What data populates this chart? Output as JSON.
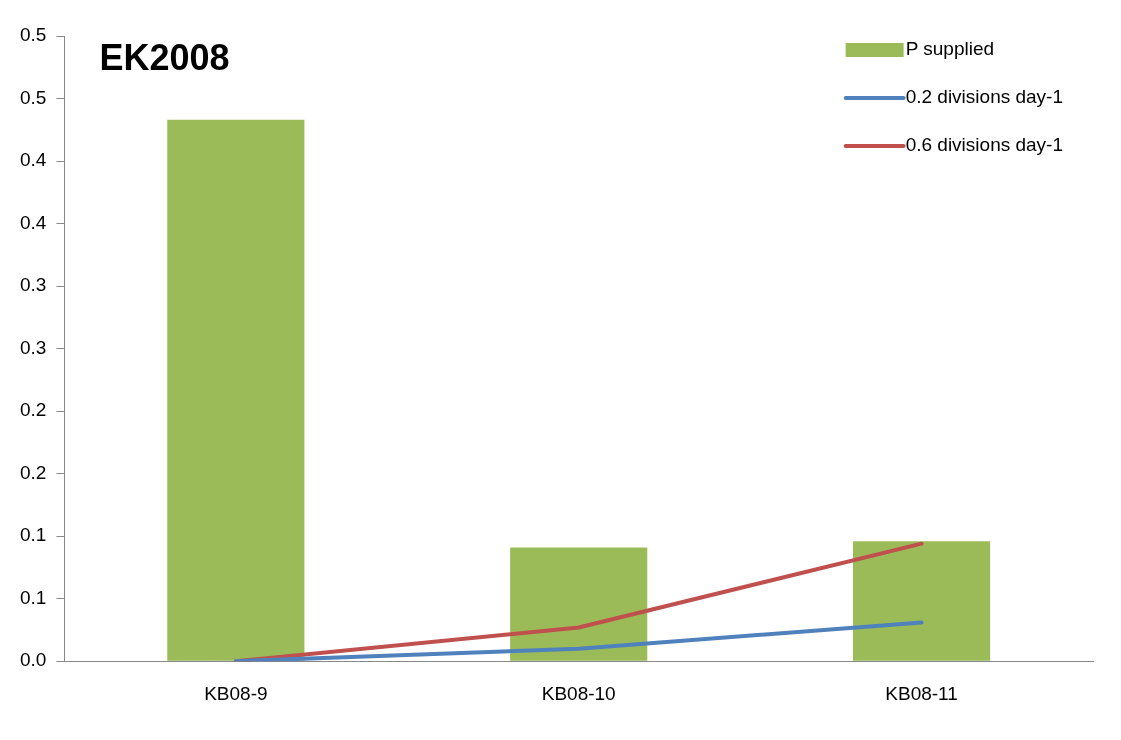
{
  "chart_data": {
    "type": "bar",
    "title": "EK2008",
    "categories": [
      "KB08-9",
      "KB08-10",
      "KB08-11"
    ],
    "series": [
      {
        "name": "P supplied",
        "color": "#9bbb59",
        "values": [
          0.433,
          0.091,
          0.096
        ]
      },
      {
        "name": "0.2 divisions day-1",
        "type": "line",
        "color": "#4f81bd",
        "values": [
          0.0,
          0.01,
          0.031
        ]
      },
      {
        "name": "0.6 divisions day-1",
        "type": "line",
        "color": "#c0504d",
        "values": [
          0.0,
          0.027,
          0.094
        ]
      }
    ],
    "ylim": [
      0,
      0.5
    ],
    "yticks": [
      {
        "value": 0,
        "label": "0.0"
      },
      {
        "value": 0.05,
        "label": "0.1"
      },
      {
        "value": 0.1,
        "label": "0.1"
      },
      {
        "value": 0.15,
        "label": "0.2"
      },
      {
        "value": 0.2,
        "label": "0.2"
      },
      {
        "value": 0.25,
        "label": "0.3"
      },
      {
        "value": 0.3,
        "label": "0.3"
      },
      {
        "value": 0.35,
        "label": "0.4"
      },
      {
        "value": 0.4,
        "label": "0.4"
      },
      {
        "value": 0.45,
        "label": "0.5"
      },
      {
        "value": 0.5,
        "label": "0.5"
      }
    ],
    "grid": false,
    "legend": "top right",
    "marker": "none"
  }
}
